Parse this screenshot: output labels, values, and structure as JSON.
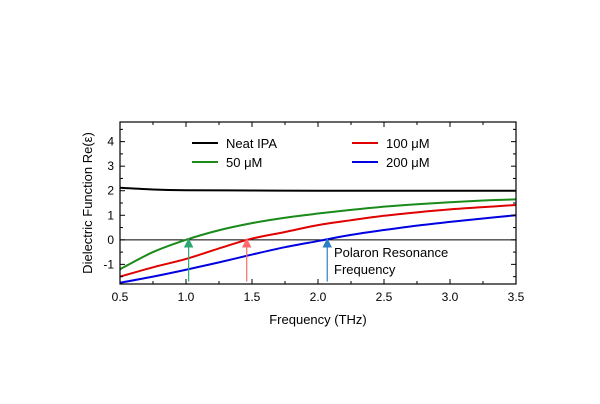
{
  "chart_data": {
    "type": "line",
    "xlabel": "Frequency (THz)",
    "ylabel": "Dielectric Function Re(ε)",
    "xlim": [
      0.5,
      3.5
    ],
    "ylim": [
      -1.8,
      4.8
    ],
    "xticks": [
      0.5,
      1.0,
      1.5,
      2.0,
      2.5,
      3.0,
      3.5
    ],
    "xtick_labels": [
      "0.5",
      "1.0",
      "1.5",
      "2.0",
      "2.5",
      "3.0",
      "3.5"
    ],
    "yticks": [
      -1,
      0,
      1,
      2,
      3,
      4
    ],
    "ytick_labels": [
      "-1",
      "0",
      "1",
      "2",
      "3",
      "4"
    ],
    "grid": false,
    "legend_position": "top",
    "series": [
      {
        "name": "Neat IPA",
        "color": "#000000",
        "x": [
          0.5,
          0.75,
          1.0,
          1.5,
          2.0,
          2.5,
          3.0,
          3.5
        ],
        "y": [
          2.12,
          2.05,
          2.02,
          2.01,
          2.0,
          2.0,
          2.0,
          2.0
        ]
      },
      {
        "name": "50 μM",
        "color": "#1a8a1a",
        "x": [
          0.5,
          0.75,
          1.0,
          1.25,
          1.5,
          1.75,
          2.0,
          2.25,
          2.5,
          2.75,
          3.0,
          3.25,
          3.5
        ],
        "y": [
          -1.2,
          -0.5,
          0.0,
          0.39,
          0.68,
          0.9,
          1.07,
          1.22,
          1.35,
          1.45,
          1.53,
          1.6,
          1.65
        ]
      },
      {
        "name": "100 μM",
        "color": "#e00000",
        "x": [
          0.5,
          0.75,
          1.0,
          1.25,
          1.5,
          1.75,
          2.0,
          2.25,
          2.5,
          2.75,
          3.0,
          3.25,
          3.5
        ],
        "y": [
          -1.5,
          -1.12,
          -0.78,
          -0.35,
          0.05,
          0.32,
          0.6,
          0.8,
          0.98,
          1.12,
          1.24,
          1.33,
          1.42
        ]
      },
      {
        "name": "200 μM",
        "color": "#0000e0",
        "x": [
          0.5,
          0.75,
          1.0,
          1.25,
          1.5,
          1.75,
          2.0,
          2.25,
          2.5,
          2.75,
          3.0,
          3.25,
          3.5
        ],
        "y": [
          -1.75,
          -1.5,
          -1.22,
          -0.92,
          -0.6,
          -0.3,
          -0.05,
          0.2,
          0.4,
          0.58,
          0.73,
          0.87,
          1.0
        ]
      }
    ],
    "annotations": [
      {
        "type": "arrow",
        "x": 1.02,
        "y_from": -1.7,
        "y_to": 0.0,
        "color": "#2aa872"
      },
      {
        "type": "arrow",
        "x": 1.46,
        "y_from": -1.7,
        "y_to": 0.0,
        "color": "#ff6a6a"
      },
      {
        "type": "arrow",
        "x": 2.07,
        "y_from": -1.7,
        "y_to": 0.0,
        "color": "#2f7fc4"
      }
    ],
    "annotation_text": [
      "Polaron Resonance",
      "Frequency"
    ]
  }
}
